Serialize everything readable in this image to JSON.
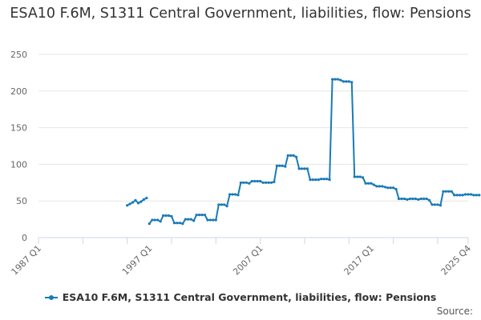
{
  "chart_data": {
    "type": "line",
    "title": "ESA10 F.6M, S1311 Central Government, liabilities, flow: Pensions",
    "xlabel": "",
    "ylabel": "",
    "ylim": [
      0,
      250
    ],
    "y_ticks": [
      0,
      50,
      100,
      150,
      200,
      250
    ],
    "x_ticks": [
      "1987 Q1",
      "1997 Q1",
      "2007 Q1",
      "2017 Q1",
      "2025 Q4"
    ],
    "x_range": [
      "1987 Q1",
      "2025 Q4"
    ],
    "grid": true,
    "legend": "bottom",
    "series": [
      {
        "name": "ESA10 F.6M, S1311 Central Government, liabilities, flow: Pensions",
        "color": "#1a7ab7",
        "start": "1995 Q1",
        "values": [
          44,
          46,
          48,
          51,
          47,
          49,
          52,
          54,
          19,
          24,
          24,
          24,
          22,
          30,
          30,
          30,
          29,
          20,
          20,
          20,
          19,
          25,
          25,
          25,
          23,
          31,
          31,
          31,
          31,
          24,
          24,
          24,
          24,
          45,
          45,
          45,
          43,
          59,
          59,
          59,
          58,
          75,
          75,
          75,
          74,
          77,
          77,
          77,
          77,
          75,
          75,
          75,
          75,
          76,
          98,
          98,
          98,
          97,
          112,
          112,
          112,
          110,
          94,
          94,
          94,
          94,
          79,
          79,
          79,
          79,
          80,
          80,
          80,
          79,
          216,
          216,
          216,
          215,
          213,
          213,
          213,
          212,
          83,
          83,
          83,
          82,
          74,
          74,
          74,
          72,
          70,
          70,
          70,
          69,
          68,
          68,
          68,
          66,
          53,
          53,
          53,
          52,
          53,
          53,
          53,
          52,
          53,
          53,
          53,
          51,
          45,
          45,
          45,
          44,
          63,
          63,
          63,
          63,
          58,
          58,
          58,
          58,
          59,
          59,
          59,
          58,
          58,
          58
        ]
      }
    ]
  },
  "source_label": "Source:"
}
